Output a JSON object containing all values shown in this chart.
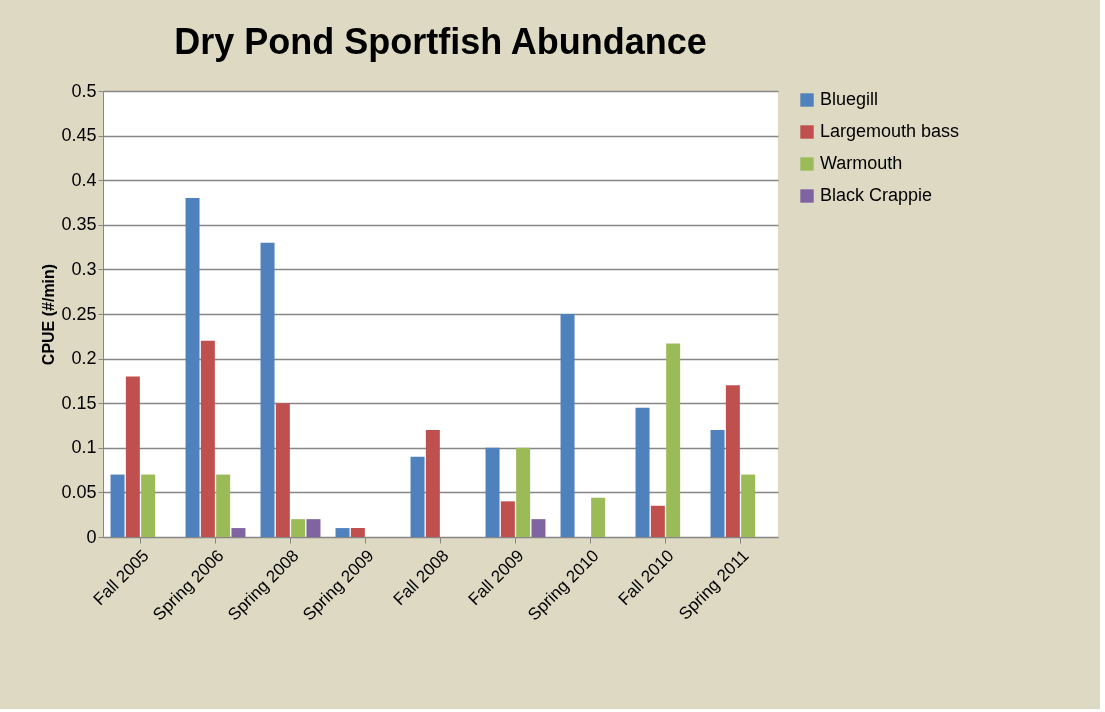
{
  "chart_data": {
    "type": "bar",
    "title": "Dry Pond Sportfish Abundance",
    "ylabel": "CPUE (#/min)",
    "categories": [
      "Fall 2005",
      "Spring 2006",
      "Spring 2008",
      "Spring 2009",
      "Fall 2008",
      "Fall 2009",
      "Spring 2010",
      "Fall 2010",
      "Spring 2011"
    ],
    "series": [
      {
        "name": "Bluegill",
        "color": "#4f81bd",
        "values": [
          0.07,
          0.38,
          0.33,
          0.01,
          0.09,
          0.1,
          0.25,
          0.145,
          0.12
        ]
      },
      {
        "name": "Largemouth bass",
        "color": "#c0504d",
        "values": [
          0.18,
          0.22,
          0.15,
          0.01,
          0.12,
          0.04,
          0,
          0.035,
          0.17
        ]
      },
      {
        "name": "Warmouth",
        "color": "#9bbb59",
        "values": [
          0.07,
          0.07,
          0.02,
          0,
          0,
          0.1,
          0.044,
          0.217,
          0.07
        ]
      },
      {
        "name": "Black Crappie",
        "color": "#8064a2",
        "values": [
          0,
          0.01,
          0.02,
          0,
          0,
          0.02,
          0,
          0,
          0
        ]
      }
    ],
    "ylim": [
      0,
      0.5
    ],
    "yticks": [
      0,
      0.05,
      0.1,
      0.15,
      0.2,
      0.25,
      0.3,
      0.35,
      0.4,
      0.45,
      0.5
    ],
    "grid": "y",
    "legend": "right"
  }
}
